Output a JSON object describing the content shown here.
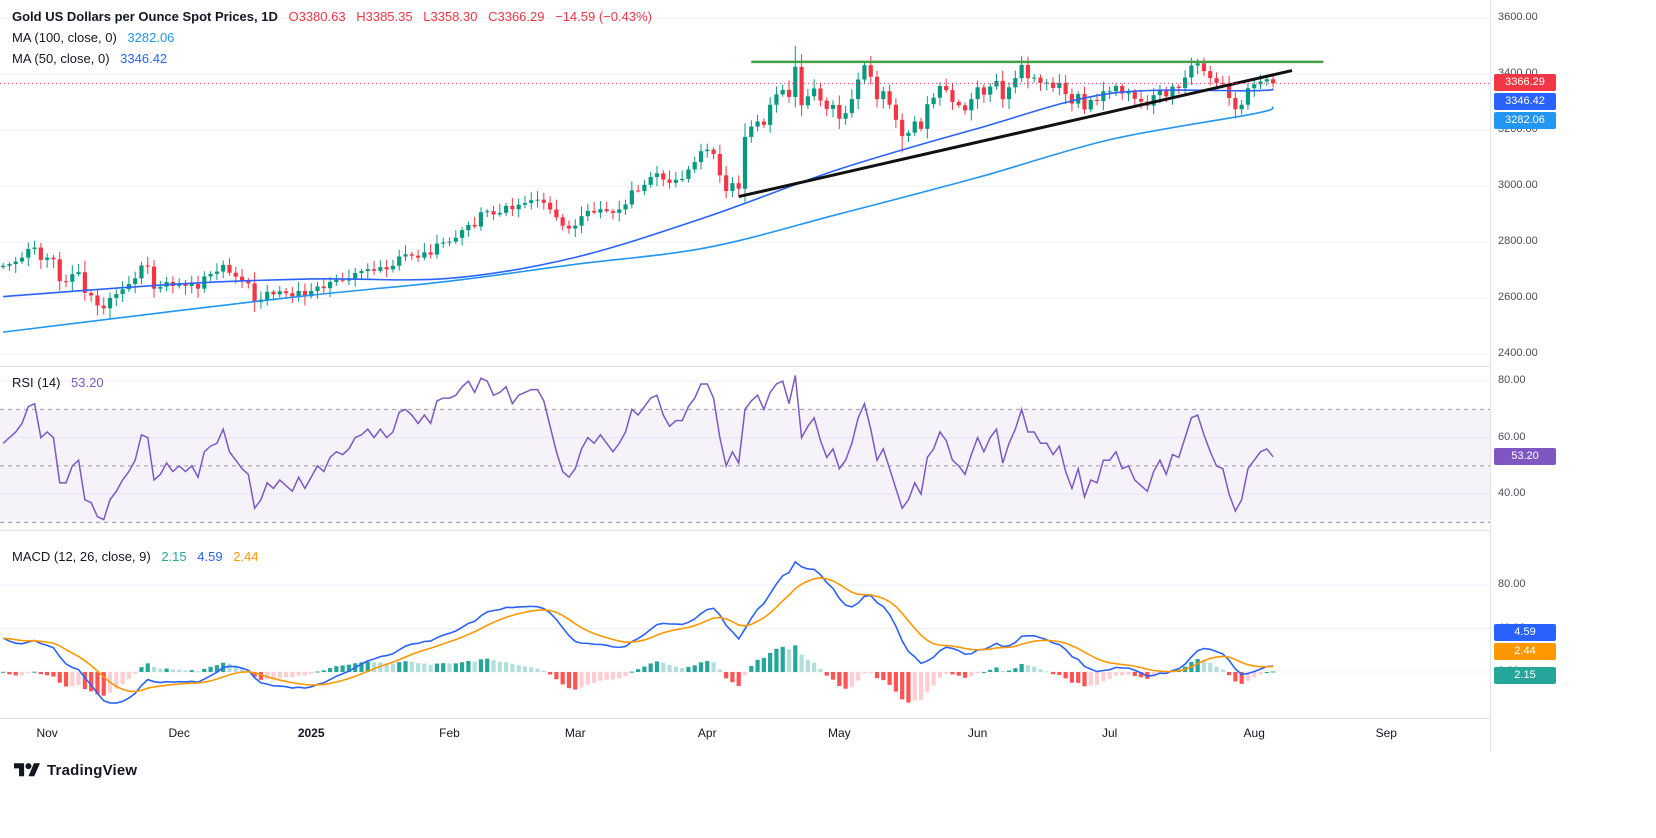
{
  "header": {
    "symbol_title": "Gold US Dollars per Ounce Spot Prices, 1D",
    "ohlc_items": [
      "O3380.63",
      "H3385.35",
      "L3358.30",
      "C3366.29",
      "−14.59 (−0.43%)"
    ],
    "ma100_label": "MA (100, close, 0)",
    "ma100_value": "3282.06",
    "ma50_label": "MA (50, close, 0)",
    "ma50_value": "3346.42"
  },
  "rsi_panel": {
    "label": "RSI (14)",
    "value": "53.20"
  },
  "macd_panel": {
    "label": "MACD (12, 26, close, 9)",
    "hist_value": "2.15",
    "macd_value": "4.59",
    "signal_value": "2.44"
  },
  "footer": {
    "brand": "TradingView"
  },
  "colors": {
    "up": "#089981",
    "down": "#f23645",
    "grid": "#eef1f7",
    "axis_text": "#4a4e59",
    "text": "#131722",
    "ma50": "#2962ff",
    "ma100": "#2196f3",
    "trendline": "#111111",
    "resistance": "#43a047",
    "last_price": "#f23645",
    "rsi": "#7e57c2",
    "rsi_band_fill": "rgba(126,87,194,0.08)",
    "rsi_band_line": "#9598a1",
    "macd": "#2962ff",
    "macd_signal": "#ff9800",
    "macd_hist": "#26a69a",
    "hist_grow_above": "#26a69a",
    "hist_fall_above": "#b2dfdb",
    "hist_fall_below": "#ff5252",
    "hist_grow_below": "#ffcdd2"
  },
  "chart_data": [
    {
      "type": "candlestick",
      "title": "Gold US Dollars per Ounce Spot Prices",
      "interval": "1D",
      "ohlc_display": {
        "open": 3380.63,
        "high": 3385.35,
        "low": 3358.3,
        "close": 3366.29,
        "change": -14.59,
        "change_pct": -0.43
      },
      "ylim": [
        2357,
        3664
      ],
      "y_ticks": [
        3600,
        3400,
        3200,
        3000,
        2800,
        2600,
        2400
      ],
      "x_axis": {
        "total_slots": 237,
        "ticks": [
          {
            "label": "Nov",
            "i": 7
          },
          {
            "label": "Dec",
            "i": 28
          },
          {
            "label": "2025",
            "i": 49,
            "bold": true
          },
          {
            "label": "Feb",
            "i": 71
          },
          {
            "label": "Mar",
            "i": 91
          },
          {
            "label": "Apr",
            "i": 112
          },
          {
            "label": "May",
            "i": 133
          },
          {
            "label": "Jun",
            "i": 155
          },
          {
            "label": "Jul",
            "i": 176
          },
          {
            "label": "Aug",
            "i": 199
          },
          {
            "label": "Sep",
            "i": 220
          }
        ]
      },
      "candles": {
        "first_open": 2710,
        "closes": [
          2715,
          2721,
          2730,
          2744,
          2775,
          2780,
          2736,
          2744,
          2738,
          2660,
          2658,
          2685,
          2692,
          2618,
          2609,
          2573,
          2563,
          2600,
          2614,
          2631,
          2650,
          2670,
          2716,
          2712,
          2633,
          2640,
          2657,
          2643,
          2650,
          2643,
          2650,
          2633,
          2677,
          2686,
          2694,
          2718,
          2690,
          2676,
          2662,
          2652,
          2585,
          2594,
          2622,
          2613,
          2624,
          2617,
          2606,
          2625,
          2606,
          2625,
          2641,
          2635,
          2657,
          2665,
          2662,
          2670,
          2689,
          2696,
          2703,
          2697,
          2710,
          2702,
          2715,
          2748,
          2756,
          2751,
          2744,
          2763,
          2755,
          2794,
          2798,
          2801,
          2815,
          2842,
          2861,
          2855,
          2906,
          2910,
          2898,
          2904,
          2929,
          2917,
          2933,
          2939,
          2949,
          2951,
          2940,
          2916,
          2888,
          2858,
          2848,
          2858,
          2892,
          2911,
          2905,
          2917,
          2910,
          2904,
          2916,
          2934,
          2984,
          2982,
          3004,
          3032,
          3045,
          3023,
          3011,
          3022,
          3025,
          3059,
          3085,
          3124,
          3130,
          3114,
          3038,
          2982,
          3010,
          2990,
          3175,
          3212,
          3230,
          3218,
          3290,
          3327,
          3343,
          3318,
          3425,
          3288,
          3320,
          3348,
          3305,
          3275,
          3289,
          3240,
          3260,
          3310,
          3380,
          3431,
          3390,
          3310,
          3338,
          3290,
          3236,
          3178,
          3190,
          3230,
          3204,
          3292,
          3315,
          3357,
          3342,
          3300,
          3288,
          3270,
          3310,
          3352,
          3326,
          3355,
          3375,
          3310,
          3352,
          3385,
          3432,
          3385,
          3387,
          3368,
          3369,
          3350,
          3368,
          3328,
          3294,
          3328,
          3273,
          3307,
          3303,
          3338,
          3338,
          3357,
          3330,
          3336,
          3311,
          3301,
          3287,
          3324,
          3343,
          3320,
          3355,
          3350,
          3387,
          3430,
          3438,
          3410,
          3385,
          3368,
          3365,
          3314,
          3274,
          3290,
          3349,
          3363,
          3373,
          3381,
          3366.29
        ],
        "high_overrides": {
          "126": 3500
        },
        "low_overrides": {
          "16": 2541,
          "115": 2956,
          "143": 3120
        }
      },
      "overlays": {
        "ma100": {
          "period": 100,
          "color": "#2196f3",
          "current": 3282.06,
          "anchors": [
            [
              0,
              2478
            ],
            [
              28,
              2555
            ],
            [
              49,
              2610
            ],
            [
              71,
              2660
            ],
            [
              91,
              2720
            ],
            [
              112,
              2780
            ],
            [
              133,
              2900
            ],
            [
              155,
              3030
            ],
            [
              176,
              3165
            ],
            [
              199,
              3258
            ],
            [
              202,
              3282
            ]
          ]
        },
        "ma50": {
          "period": 50,
          "color": "#2962ff",
          "current": 3346.42,
          "anchors": [
            [
              0,
              2605
            ],
            [
              28,
              2650
            ],
            [
              49,
              2668
            ],
            [
              71,
              2670
            ],
            [
              91,
              2745
            ],
            [
              112,
              2890
            ],
            [
              133,
              3060
            ],
            [
              155,
              3205
            ],
            [
              176,
              3330
            ],
            [
              199,
              3340
            ],
            [
              202,
              3346
            ]
          ]
        },
        "trendline": {
          "from": [
            117,
            2962
          ],
          "to": [
            205,
            3412
          ],
          "color": "#111111"
        },
        "resistance": {
          "from": 119,
          "to": 210,
          "price": 3443,
          "color": "#43a047"
        },
        "last_price_line": {
          "price": 3366.29,
          "color": "#f23645"
        }
      },
      "axis_badges": [
        {
          "label": "3366.29",
          "value": 3366.29,
          "color": "#f23645"
        },
        {
          "label": "3346.42",
          "value": 3346.42,
          "color": "#2962ff"
        },
        {
          "label": "3282.06",
          "value": 3282.06,
          "color": "#2196f3"
        }
      ]
    },
    {
      "type": "line",
      "title": "RSI (14)",
      "ylim": [
        27.3,
        85
      ],
      "y_ticks": [
        80,
        60,
        40
      ],
      "bands": {
        "upper": 70,
        "middle": 50,
        "lower": 30,
        "fill": "rgba(126,87,194,0.08)"
      },
      "last_value": 53.2,
      "axis_badge": {
        "label": "53.20",
        "value": 53.2,
        "color": "#7e57c2"
      },
      "series": [
        {
          "name": "RSI",
          "color": "#7e57c2",
          "values": [
            58,
            60,
            62,
            65,
            71,
            72,
            60,
            62,
            60,
            44,
            44,
            50,
            52,
            38,
            37,
            32,
            31,
            38,
            41,
            45,
            48,
            52,
            61,
            60,
            45,
            47,
            51,
            48,
            50,
            48,
            50,
            46,
            55,
            57,
            58,
            63,
            55,
            52,
            49,
            47,
            35,
            38,
            44,
            42,
            45,
            43,
            41,
            46,
            42,
            46,
            50,
            48,
            53,
            55,
            54,
            56,
            60,
            61,
            63,
            60,
            63,
            60,
            62,
            69,
            70,
            68,
            65,
            68,
            65,
            73,
            74,
            74,
            75,
            78,
            80,
            76,
            81,
            80,
            75,
            76,
            78,
            72,
            75,
            76,
            77,
            77,
            73,
            64,
            55,
            48,
            46,
            49,
            56,
            60,
            58,
            61,
            58,
            55,
            58,
            62,
            70,
            68,
            71,
            74,
            75,
            68,
            64,
            66,
            66,
            71,
            74,
            79,
            79,
            74,
            60,
            50,
            55,
            51,
            70,
            73,
            75,
            70,
            76,
            79,
            80,
            72,
            82,
            60,
            64,
            67,
            59,
            53,
            56,
            49,
            52,
            58,
            67,
            72,
            63,
            52,
            56,
            49,
            42,
            35,
            38,
            44,
            40,
            53,
            56,
            62,
            59,
            52,
            50,
            47,
            54,
            60,
            55,
            60,
            63,
            51,
            58,
            63,
            70,
            62,
            62,
            58,
            58,
            54,
            57,
            48,
            42,
            49,
            39,
            45,
            44,
            52,
            52,
            55,
            49,
            50,
            45,
            43,
            41,
            48,
            52,
            47,
            54,
            53,
            60,
            67,
            68,
            61,
            55,
            50,
            49,
            40,
            34,
            38,
            49,
            52,
            55,
            56,
            53.2
          ]
        }
      ]
    },
    {
      "type": "macd",
      "title": "MACD (12, 26, close, 9)",
      "params": {
        "fast": 12,
        "slow": 26,
        "source": "close",
        "signal": 9
      },
      "derived_from": "chart_data.0.candles.closes",
      "initial": {
        "macd": 35,
        "signal": 31
      },
      "current": {
        "macd": 4.59,
        "signal": 2.44,
        "histogram": 2.15
      },
      "ylim": [
        -42.3,
        129.7
      ],
      "y_ticks": [
        80,
        40,
        0
      ],
      "axis_badges": [
        {
          "label": "4.59",
          "color": "#2962ff"
        },
        {
          "label": "2.44",
          "color": "#ff9800"
        },
        {
          "label": "2.15",
          "color": "#26a69a"
        }
      ]
    }
  ]
}
